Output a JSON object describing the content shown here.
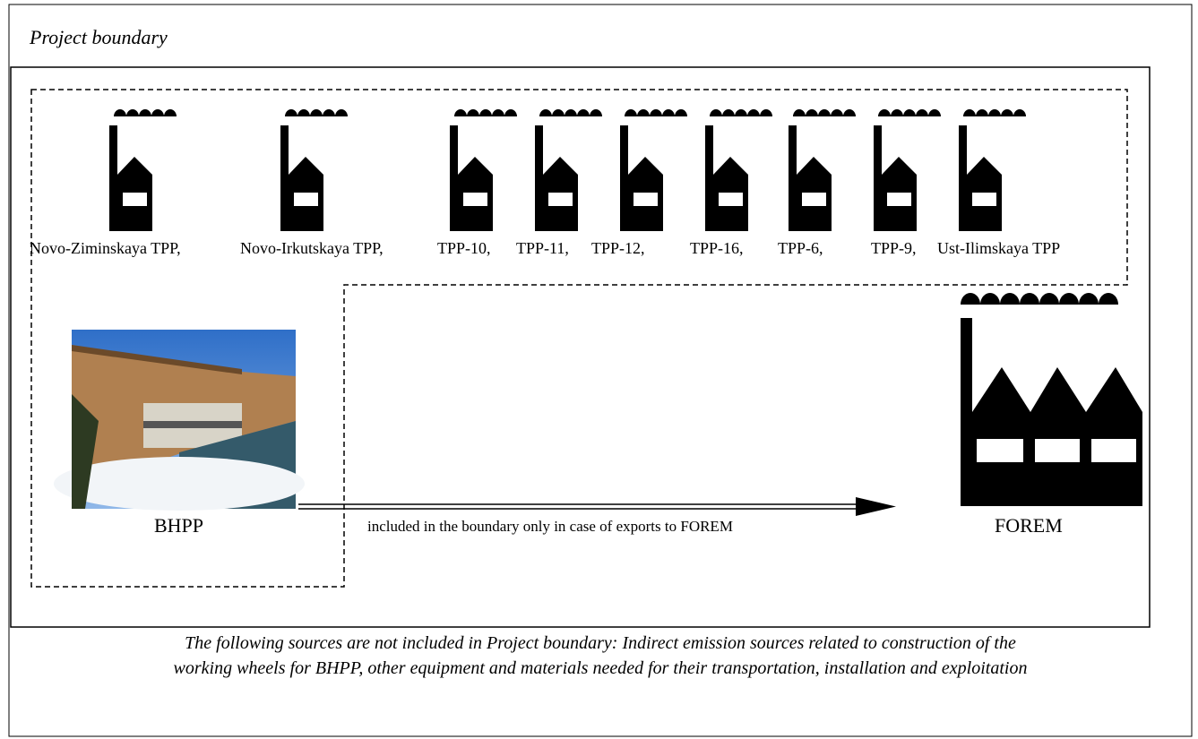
{
  "boundary": {
    "title": "Project boundary"
  },
  "plants": {
    "labels": [
      "Novo-Ziminskaya TPP,",
      "Novo-Irkutskaya TPP,",
      "TPP-10,",
      "TPP-11,",
      "TPP-12,",
      "TPP-16,",
      "TPP-6,",
      "TPP-9,",
      "Ust-Ilimskaya TPP"
    ]
  },
  "bhpp": {
    "label": "BHPP"
  },
  "forem": {
    "label": "FOREM"
  },
  "arrow": {
    "label": "included in the boundary only in case of exports to FOREM"
  },
  "footnote": {
    "lines": [
      "The following sources are not included in Project boundary: Indirect emission sources related to construction of the",
      "working wheels for BHPP, other equipment and materials needed for their transportation, installation and exploitation"
    ]
  }
}
